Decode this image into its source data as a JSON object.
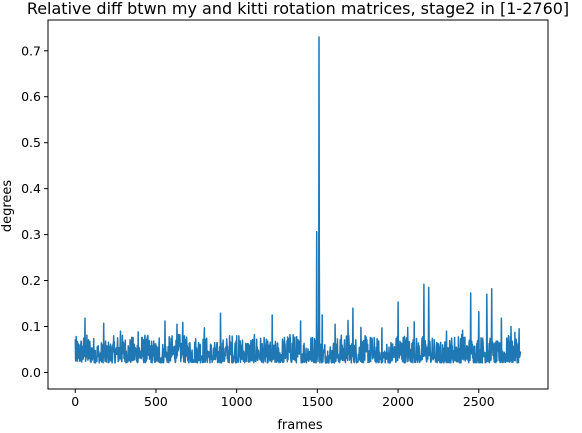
{
  "chart_data": {
    "type": "line",
    "title": "Relative diff btwn my and kitti rotation matrices, stage2 in [1-2760]",
    "xlabel": "frames",
    "ylabel": "degrees",
    "xlim": [
      -169,
      2929
    ],
    "ylim": [
      -0.036,
      0.767
    ],
    "xticks": [
      0,
      500,
      1000,
      1500,
      2000,
      2500
    ],
    "yticks": [
      0.0,
      0.1,
      0.2,
      0.3,
      0.4,
      0.5,
      0.6,
      0.7
    ],
    "xtick_labels": [
      "0",
      "500",
      "1000",
      "1500",
      "2000",
      "2500"
    ],
    "ytick_labels": [
      "0.0",
      "0.1",
      "0.2",
      "0.3",
      "0.4",
      "0.5",
      "0.6",
      "0.7"
    ],
    "grid": false,
    "legend": "none",
    "series": [
      {
        "color": "#1f77b4",
        "n_frames": 2760,
        "baseline_min": 0.005,
        "baseline_max": 0.11,
        "peaks": [
          {
            "x": 0,
            "y": 0.072
          },
          {
            "x": 60,
            "y": 0.118
          },
          {
            "x": 175,
            "y": 0.107
          },
          {
            "x": 280,
            "y": 0.09
          },
          {
            "x": 390,
            "y": 0.088
          },
          {
            "x": 520,
            "y": 0.075
          },
          {
            "x": 555,
            "y": 0.112
          },
          {
            "x": 630,
            "y": 0.105
          },
          {
            "x": 665,
            "y": 0.109
          },
          {
            "x": 800,
            "y": 0.097
          },
          {
            "x": 900,
            "y": 0.129
          },
          {
            "x": 1000,
            "y": 0.08
          },
          {
            "x": 1100,
            "y": 0.07
          },
          {
            "x": 1220,
            "y": 0.125
          },
          {
            "x": 1350,
            "y": 0.082
          },
          {
            "x": 1395,
            "y": 0.112
          },
          {
            "x": 1460,
            "y": 0.075
          },
          {
            "x": 1495,
            "y": 0.306
          },
          {
            "x": 1510,
            "y": 0.73
          },
          {
            "x": 1530,
            "y": 0.125
          },
          {
            "x": 1610,
            "y": 0.105
          },
          {
            "x": 1690,
            "y": 0.113
          },
          {
            "x": 1720,
            "y": 0.14
          },
          {
            "x": 1770,
            "y": 0.098
          },
          {
            "x": 1900,
            "y": 0.097
          },
          {
            "x": 2000,
            "y": 0.153
          },
          {
            "x": 2060,
            "y": 0.098
          },
          {
            "x": 2100,
            "y": 0.11
          },
          {
            "x": 2160,
            "y": 0.192
          },
          {
            "x": 2190,
            "y": 0.185
          },
          {
            "x": 2300,
            "y": 0.09
          },
          {
            "x": 2400,
            "y": 0.092
          },
          {
            "x": 2450,
            "y": 0.173
          },
          {
            "x": 2500,
            "y": 0.132
          },
          {
            "x": 2550,
            "y": 0.17
          },
          {
            "x": 2580,
            "y": 0.182
          },
          {
            "x": 2640,
            "y": 0.118
          },
          {
            "x": 2700,
            "y": 0.1
          },
          {
            "x": 2750,
            "y": 0.095
          }
        ]
      }
    ]
  }
}
